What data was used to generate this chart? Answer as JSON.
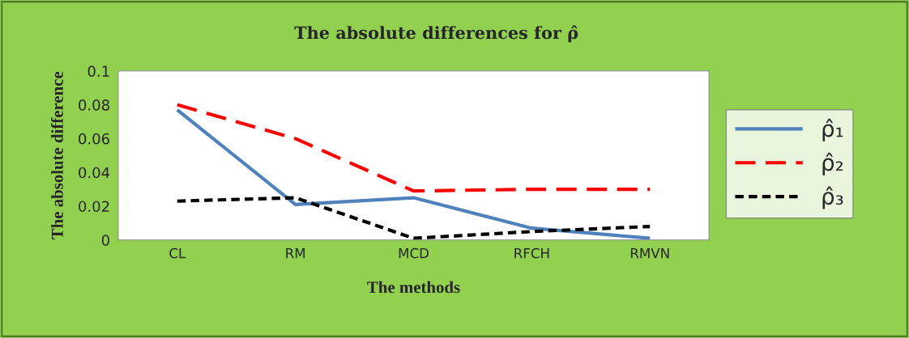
{
  "chart_data": {
    "type": "line",
    "title": "The absolute differences for ρ̂",
    "xlabel": "The methods",
    "ylabel": "The absolute difference",
    "categories": [
      "CL",
      "RM",
      "MCD",
      "RFCH",
      "RMVN"
    ],
    "series": [
      {
        "name": "ρ̂₁",
        "color": "#4f81bd",
        "line_style": "solid",
        "values": [
          0.077,
          0.021,
          0.025,
          0.007,
          0.001
        ]
      },
      {
        "name": "ρ̂₂",
        "color": "#ff0000",
        "line_style": "dashed",
        "values": [
          0.08,
          0.06,
          0.029,
          0.03,
          0.03
        ]
      },
      {
        "name": "ρ̂₃",
        "color": "#000000",
        "line_style": "dotted",
        "values": [
          0.023,
          0.025,
          0.001,
          0.005,
          0.008
        ]
      }
    ],
    "ylim": [
      0,
      0.1
    ],
    "yticks": [
      0,
      0.02,
      0.04,
      0.06,
      0.08,
      0.1
    ],
    "grid": false,
    "legend": "right",
    "marker": "none"
  }
}
